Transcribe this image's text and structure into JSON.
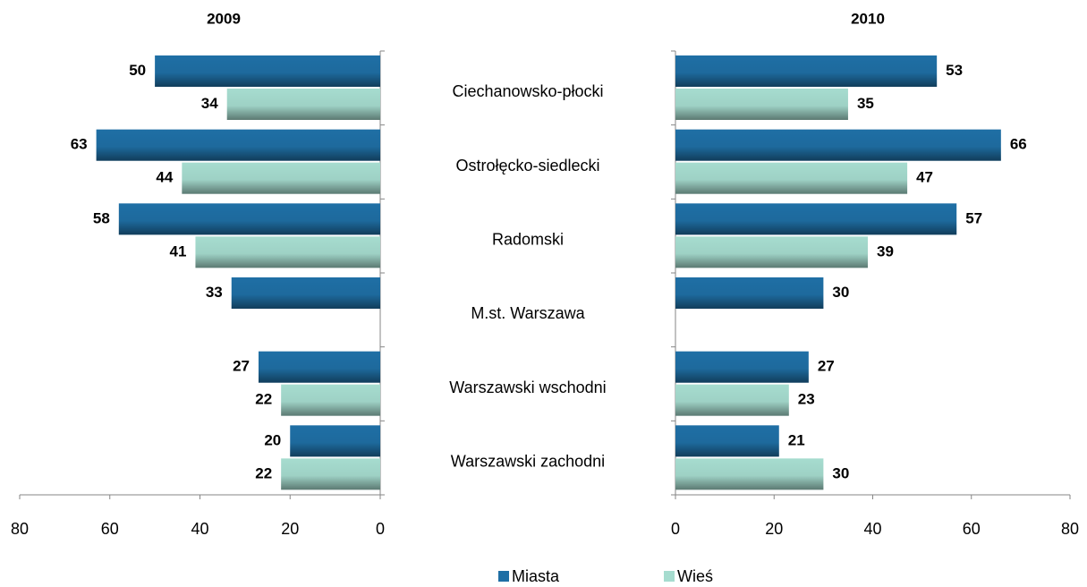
{
  "chart_data": [
    {
      "type": "bar",
      "orientation": "horizontal",
      "title": "2009",
      "x_reversed": true,
      "categories": [
        "Ciechanowsko-płocki",
        "Ostrołęcko-siedlecki",
        "Radomski",
        "M.st. Warszawa",
        "Warszawski wschodni",
        "Warszawski zachodni"
      ],
      "series": [
        {
          "name": "Miasta",
          "color": "#1f6fa5",
          "values": [
            50,
            63,
            58,
            33,
            27,
            20
          ]
        },
        {
          "name": "Wieś",
          "color": "#a6dccf",
          "values": [
            34,
            44,
            41,
            null,
            22,
            22
          ]
        }
      ],
      "xlim": [
        0,
        80
      ],
      "xticks": [
        0,
        20,
        40,
        60,
        80
      ]
    },
    {
      "type": "bar",
      "orientation": "horizontal",
      "title": "2010",
      "x_reversed": false,
      "series": [
        {
          "color": "#1f6fa5",
          "values": [
            53,
            66,
            57,
            30,
            27,
            21
          ]
        },
        {
          "color": "#a6dccf",
          "values": [
            35,
            47,
            39,
            null,
            23,
            30
          ]
        }
      ],
      "xlim": [
        0,
        80
      ],
      "xticks": [
        0,
        20,
        40,
        60,
        80
      ]
    }
  ]
}
